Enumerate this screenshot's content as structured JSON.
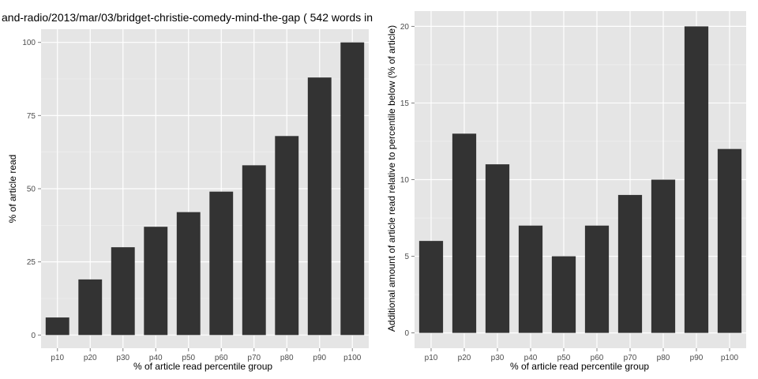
{
  "page_title": "and-radio/2013/mar/03/bridget-christie-comedy-mind-the-gap ( 542 words in",
  "chart_data": [
    {
      "type": "bar",
      "categories": [
        "p10",
        "p20",
        "p30",
        "p40",
        "p50",
        "p60",
        "p70",
        "p80",
        "p90",
        "p100"
      ],
      "values": [
        6,
        19,
        30,
        37,
        42,
        49,
        58,
        68,
        88,
        100
      ],
      "xlabel": "% of article read percentile group",
      "ylabel": "% of article read",
      "ylim": [
        -4.5,
        104.5
      ],
      "yticks": [
        0,
        25,
        50,
        75,
        100
      ],
      "bar_color": "#333333",
      "panel_background": "#e5e5e5",
      "grid": true
    },
    {
      "type": "bar",
      "categories": [
        "p10",
        "p20",
        "p30",
        "p40",
        "p50",
        "p60",
        "p70",
        "p80",
        "p90",
        "p100"
      ],
      "values": [
        6,
        13,
        11,
        7,
        5,
        7,
        9,
        10,
        20,
        12
      ],
      "xlabel": "% of article read percentile group",
      "ylabel": "Additional amount of article read relative to percentile below (% of article)",
      "ylim": [
        -1,
        21
      ],
      "yticks": [
        0,
        5,
        10,
        15,
        20
      ],
      "bar_color": "#333333",
      "panel_background": "#e5e5e5",
      "grid": true
    }
  ]
}
